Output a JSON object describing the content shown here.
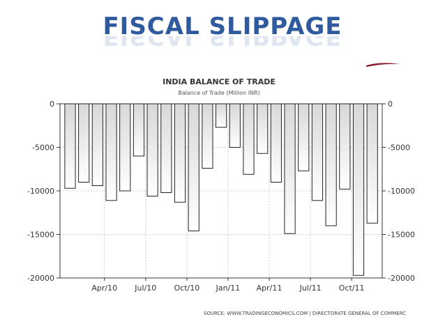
{
  "slide": {
    "title": "FISCAL SLIPPAGE"
  },
  "colors": {
    "title": "#2f5b9e",
    "bar_stroke": "#222222",
    "bar_fill_top": "#d8d8d8",
    "bar_fill_bottom": "#ffffff",
    "grid": "#cccccc",
    "accent": "#8a1a2e"
  },
  "chart_data": {
    "type": "bar",
    "title": "INDIA BALANCE OF TRADE",
    "subtitle": "Balance of Trade (Million INR)",
    "source": "SOURCE: WWW.TRADINGECONOMICS.COM | DIRECTORATE GENERAL OF COMMERC",
    "xlabel": "",
    "ylabel": "",
    "ylim": [
      -20000,
      0
    ],
    "yticks": [
      0,
      -5000,
      -10000,
      -15000,
      -20000
    ],
    "ytick_labels": [
      "0",
      "-5000",
      "-10000",
      "-15000",
      "-20000"
    ],
    "x_tick_labels": [
      "Apr/10",
      "Jul/10",
      "Oct/10",
      "Jan/11",
      "Apr/11",
      "Jul/11",
      "Oct/11"
    ],
    "x_tick_bar_index": [
      2.5,
      5.5,
      8.5,
      11.5,
      14.5,
      17.5,
      20.5
    ],
    "grid": true,
    "dual_y_axis": true,
    "values": [
      -9700,
      -9000,
      -9400,
      -11100,
      -10000,
      -6000,
      -10600,
      -10200,
      -11300,
      -14600,
      -7400,
      -2700,
      -5000,
      -8100,
      -5700,
      -9000,
      -14900,
      -7700,
      -11100,
      -14000,
      -9800,
      -19700,
      -13700
    ]
  }
}
